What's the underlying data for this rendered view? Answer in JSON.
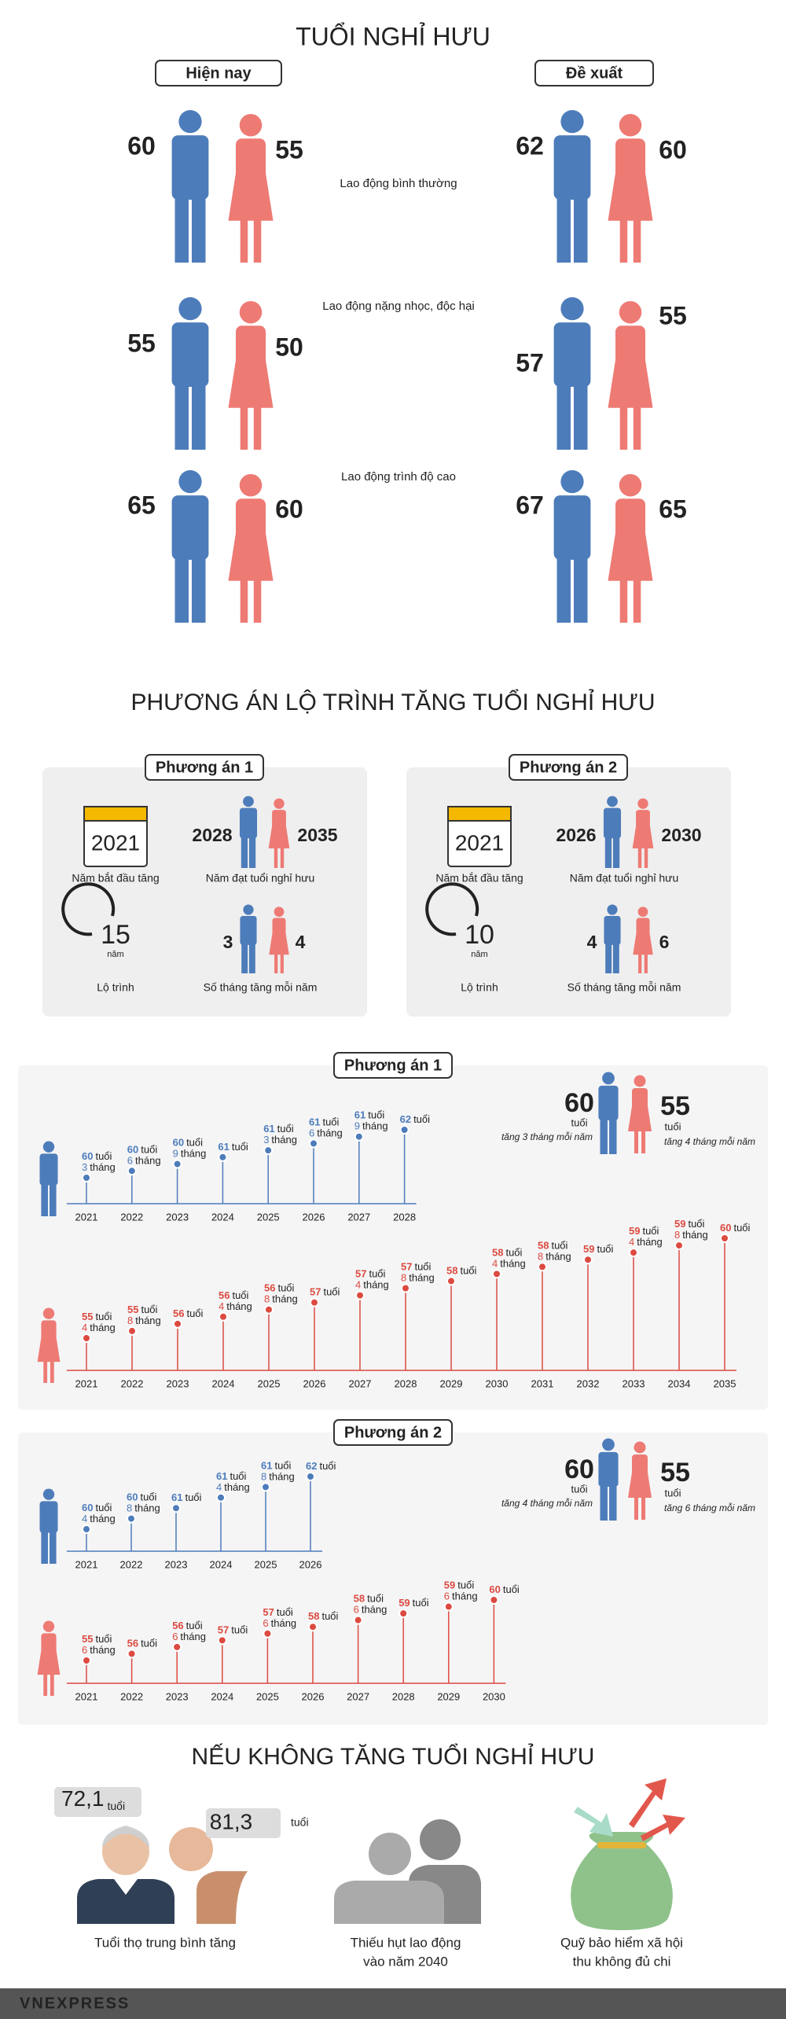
{
  "title": "TUỔI NGHỈ HƯU",
  "current_label": "Hiện nay",
  "proposed_label": "Đề xuất",
  "groups": [
    {
      "label": "Lao động bình thường",
      "current": [
        60,
        55
      ],
      "proposed": [
        62,
        60
      ]
    },
    {
      "label": "Lao động nặng nhọc, độc hại",
      "current": [
        55,
        50
      ],
      "proposed": [
        57,
        55
      ]
    },
    {
      "label": "Lao động trình độ cao",
      "current": [
        65,
        60
      ],
      "proposed": [
        67,
        65
      ]
    }
  ],
  "roadmap": {
    "title": "PHƯƠNG ÁN LỘ TRÌNH TĂNG TUỔI NGHỈ HƯU",
    "labels": {
      "start": "Năm bắt đầu tăng",
      "target": "Năm đạt tuổi nghỉ hưu",
      "duration": "Lộ trình",
      "months": "Số tháng tăng mỗi năm",
      "year_unit": "năm"
    },
    "options": [
      {
        "name": "Phương án 1",
        "start": 2021,
        "target": [
          2028,
          2035
        ],
        "duration": 15,
        "months": [
          3,
          4
        ]
      },
      {
        "name": "Phương án 2",
        "start": 2021,
        "target": [
          2026,
          2030
        ],
        "duration": 10,
        "months": [
          4,
          6
        ]
      }
    ]
  },
  "timelines": {
    "age_unit": "tuổi",
    "month_unit": "tháng",
    "options": [
      {
        "name": "Phương án 1",
        "legend": {
          "ages": [
            60,
            55
          ],
          "notes": [
            "tăng 3 tháng mỗi năm",
            "tăng 4 tháng mỗi năm"
          ]
        },
        "lines": [
          [
            {
              "year": 2021,
              "age": 60,
              "months": 3
            },
            {
              "year": 2022,
              "age": 60,
              "months": 6
            },
            {
              "year": 2023,
              "age": 60,
              "months": 9
            },
            {
              "year": 2024,
              "age": 61
            },
            {
              "year": 2025,
              "age": 61,
              "months": 3
            },
            {
              "year": 2026,
              "age": 61,
              "months": 6
            },
            {
              "year": 2027,
              "age": 61,
              "months": 9
            },
            {
              "year": 2028,
              "age": 62
            }
          ],
          [
            {
              "year": 2021,
              "age": 55,
              "months": 4
            },
            {
              "year": 2022,
              "age": 55,
              "months": 8
            },
            {
              "year": 2023,
              "age": 56
            },
            {
              "year": 2024,
              "age": 56,
              "months": 4
            },
            {
              "year": 2025,
              "age": 56,
              "months": 8
            },
            {
              "year": 2026,
              "age": 57
            },
            {
              "year": 2027,
              "age": 57,
              "months": 4
            },
            {
              "year": 2028,
              "age": 57,
              "months": 8
            },
            {
              "year": 2029,
              "age": 58
            },
            {
              "year": 2030,
              "age": 58,
              "months": 4
            },
            {
              "year": 2031,
              "age": 58,
              "months": 8
            },
            {
              "year": 2032,
              "age": 59
            },
            {
              "year": 2033,
              "age": 59,
              "months": 4
            },
            {
              "year": 2034,
              "age": 59,
              "months": 8
            },
            {
              "year": 2035,
              "age": 60
            }
          ]
        ]
      },
      {
        "name": "Phương án 2",
        "legend": {
          "ages": [
            60,
            55
          ],
          "notes": [
            "tăng 4 tháng mỗi năm",
            "tăng 6 tháng mỗi năm"
          ]
        },
        "lines": [
          [
            {
              "year": 2021,
              "age": 60,
              "months": 4
            },
            {
              "year": 2022,
              "age": 60,
              "months": 8
            },
            {
              "year": 2023,
              "age": 61
            },
            {
              "year": 2024,
              "age": 61,
              "months": 4
            },
            {
              "year": 2025,
              "age": 61,
              "months": 8
            },
            {
              "year": 2026,
              "age": 62
            }
          ],
          [
            {
              "year": 2021,
              "age": 55,
              "months": 6
            },
            {
              "year": 2022,
              "age": 56
            },
            {
              "year": 2023,
              "age": 56,
              "months": 6
            },
            {
              "year": 2024,
              "age": 57
            },
            {
              "year": 2025,
              "age": 57,
              "months": 6
            },
            {
              "year": 2026,
              "age": 58
            },
            {
              "year": 2027,
              "age": 58,
              "months": 6
            },
            {
              "year": 2028,
              "age": 59
            },
            {
              "year": 2029,
              "age": 59,
              "months": 6
            },
            {
              "year": 2030,
              "age": 60
            }
          ]
        ]
      }
    ]
  },
  "consequences": {
    "title": "NẾU KHÔNG TĂNG TUỔI NGHỈ HƯU",
    "life_expectancy": {
      "values": [
        "72,1",
        "81,3"
      ],
      "unit": "tuổi"
    },
    "items": [
      [
        "Tuổi thọ trung bình tăng"
      ],
      [
        "Thiếu hụt lao động",
        "vào năm 2040"
      ],
      [
        "Quỹ bảo hiểm xã hội",
        "thu không đủ chi"
      ]
    ]
  },
  "footer": {
    "logo": "VNEXPRESS"
  }
}
